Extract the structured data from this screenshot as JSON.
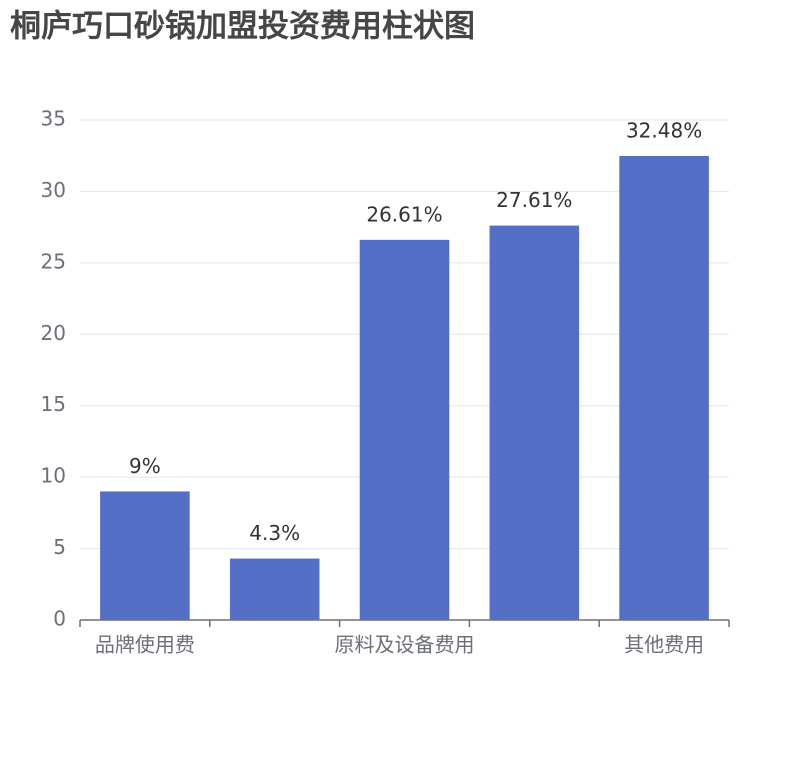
{
  "chart_data": {
    "type": "bar",
    "title": "桐庐巧口砂锅加盟投资费用柱状图",
    "categories": [
      "品牌使用费",
      null,
      "原料及设备费用",
      null,
      "其他费用"
    ],
    "values": [
      9,
      4.3,
      26.61,
      27.61,
      32.48
    ],
    "value_labels": [
      "9%",
      "4.3%",
      "26.61%",
      "27.61%",
      "32.48%"
    ],
    "color": "#5470c6",
    "ylim": [
      0,
      35
    ],
    "yticks": [
      0,
      5,
      10,
      15,
      20,
      25,
      30,
      35
    ],
    "grid": true
  }
}
